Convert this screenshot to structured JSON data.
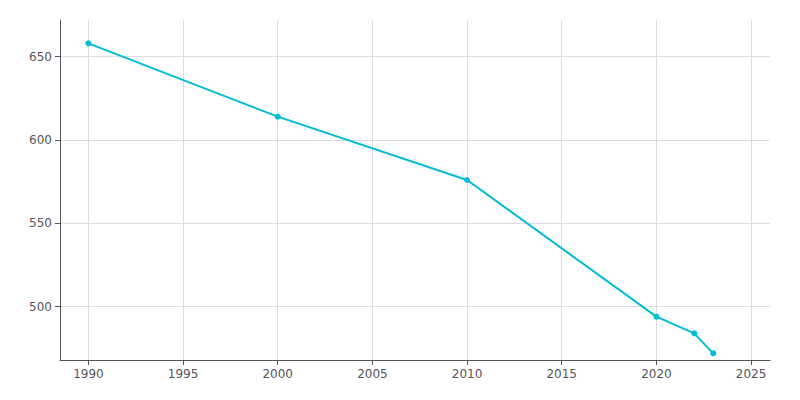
{
  "chart_data": {
    "type": "line",
    "x": [
      1990,
      2000,
      2010,
      2020,
      2022,
      2023
    ],
    "values": [
      658,
      614,
      576,
      494,
      484,
      472
    ],
    "color": "#00bcd4",
    "marker": "circle",
    "xlim": [
      1988.5,
      2026
    ],
    "ylim": [
      468,
      672
    ],
    "xticks": [
      1990,
      1995,
      2000,
      2005,
      2010,
      2015,
      2020,
      2025
    ],
    "yticks": [
      500,
      550,
      600,
      650
    ],
    "grid": true
  }
}
